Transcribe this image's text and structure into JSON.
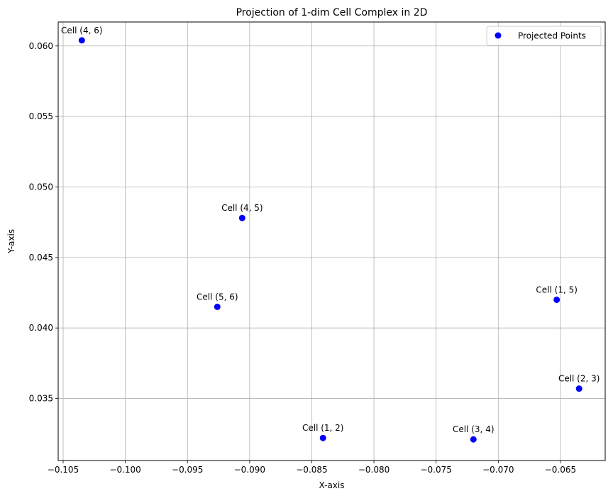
{
  "chart_data": {
    "type": "scatter",
    "title": "Projection of 1-dim Cell Complex in 2D",
    "xlabel": "X-axis",
    "ylabel": "Y-axis",
    "xlim": [
      -0.1054,
      -0.0614
    ],
    "ylim": [
      0.0306,
      0.0617
    ],
    "grid": true,
    "legend_position": "top-right",
    "xticks": [
      -0.105,
      -0.1,
      -0.095,
      -0.09,
      -0.085,
      -0.08,
      -0.075,
      -0.07,
      -0.065
    ],
    "xtick_labels": [
      "−0.105",
      "−0.100",
      "−0.095",
      "−0.090",
      "−0.085",
      "−0.080",
      "−0.075",
      "−0.070",
      "−0.065"
    ],
    "yticks": [
      0.035,
      0.04,
      0.045,
      0.05,
      0.055,
      0.06
    ],
    "ytick_labels": [
      "0.035",
      "0.040",
      "0.045",
      "0.050",
      "0.055",
      "0.060"
    ],
    "series": [
      {
        "name": "Projected Points",
        "color": "#0000ff",
        "points": [
          {
            "label": "Cell (4, 6)",
            "x": -0.1035,
            "y": 0.0604
          },
          {
            "label": "Cell (4, 5)",
            "x": -0.0906,
            "y": 0.0478
          },
          {
            "label": "Cell (5, 6)",
            "x": -0.0926,
            "y": 0.0415
          },
          {
            "label": "Cell (1, 2)",
            "x": -0.0841,
            "y": 0.0322
          },
          {
            "label": "Cell (3, 4)",
            "x": -0.072,
            "y": 0.0321
          },
          {
            "label": "Cell (1, 5)",
            "x": -0.0653,
            "y": 0.042
          },
          {
            "label": "Cell (2, 3)",
            "x": -0.0635,
            "y": 0.0357
          }
        ]
      }
    ]
  }
}
